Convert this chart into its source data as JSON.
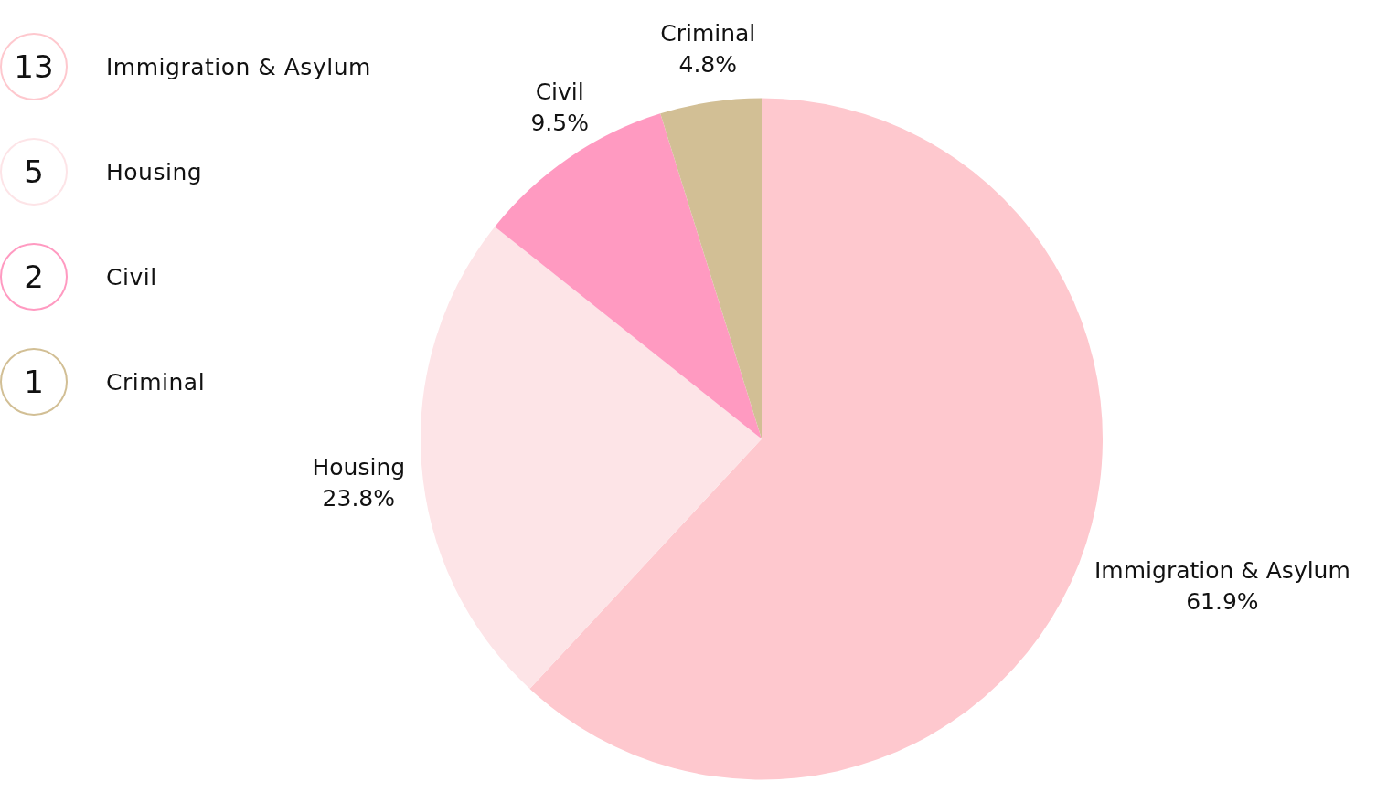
{
  "chart_data": {
    "type": "pie",
    "categories": [
      "Immigration & Asylum",
      "Housing",
      "Civil",
      "Criminal"
    ],
    "values": [
      61.9,
      23.8,
      9.5,
      4.8
    ],
    "colors": [
      "#fec8ce",
      "#fde4e7",
      "#ff9ac1",
      "#d2bf95"
    ],
    "value_labels": [
      "61.9%",
      "23.8%",
      "9.5%",
      "4.8%"
    ],
    "annotations": [
      "13",
      "5",
      "2",
      "1"
    ]
  }
}
